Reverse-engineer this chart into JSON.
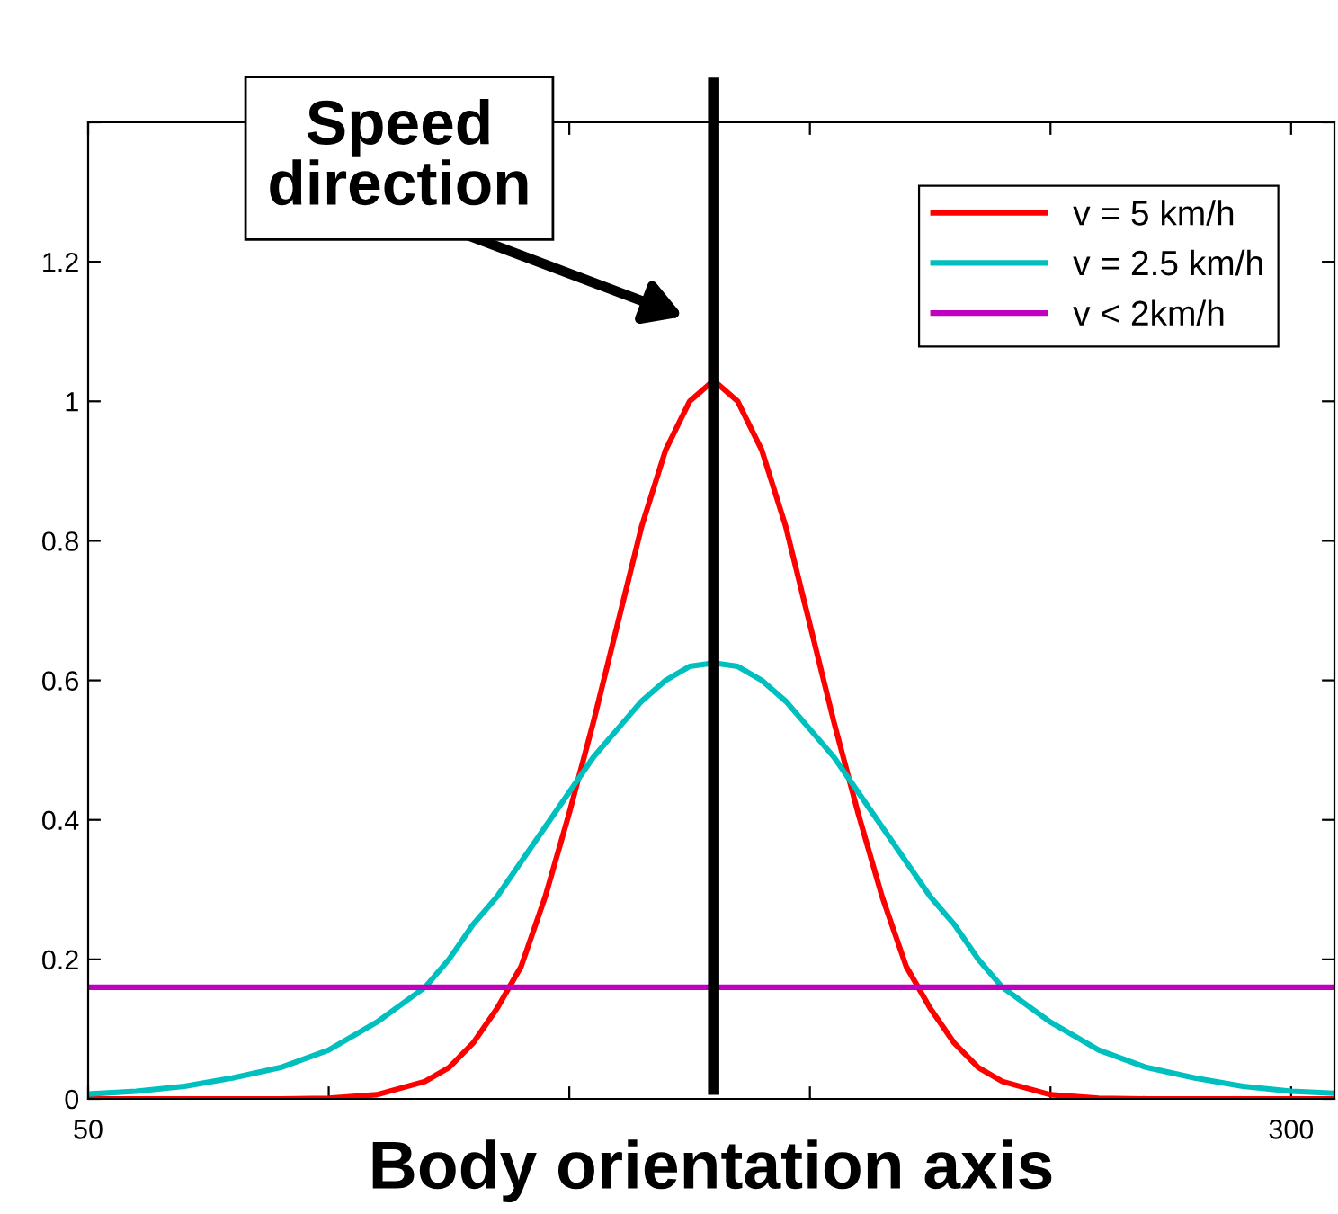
{
  "chart_data": {
    "type": "line",
    "xlabel": "Body orientation axis",
    "x": [
      50,
      60,
      70,
      80,
      90,
      100,
      110,
      120,
      125,
      130,
      135,
      140,
      145,
      150,
      155,
      160,
      165,
      170,
      175,
      180,
      185,
      190,
      195,
      200,
      205,
      210,
      215,
      220,
      225,
      230,
      235,
      240,
      250,
      260,
      270,
      280,
      290,
      300,
      309
    ],
    "series": [
      {
        "name": "v = 5 km/h",
        "color": "#ff0000",
        "values": [
          0,
          0,
          0,
          0,
          0,
          0.001,
          0.006,
          0.025,
          0.045,
          0.08,
          0.13,
          0.19,
          0.29,
          0.41,
          0.54,
          0.68,
          0.82,
          0.93,
          1.0,
          1.03,
          1.0,
          0.93,
          0.82,
          0.68,
          0.54,
          0.41,
          0.29,
          0.19,
          0.13,
          0.08,
          0.045,
          0.025,
          0.006,
          0.001,
          0,
          0,
          0,
          0,
          0
        ]
      },
      {
        "name": "v = 2.5 km/h",
        "color": "#00bfbf",
        "values": [
          0.007,
          0.011,
          0.018,
          0.03,
          0.045,
          0.07,
          0.11,
          0.16,
          0.2,
          0.25,
          0.29,
          0.34,
          0.39,
          0.44,
          0.49,
          0.53,
          0.57,
          0.6,
          0.62,
          0.625,
          0.62,
          0.6,
          0.57,
          0.53,
          0.49,
          0.44,
          0.39,
          0.34,
          0.29,
          0.25,
          0.2,
          0.16,
          0.11,
          0.07,
          0.045,
          0.03,
          0.018,
          0.011,
          0.008
        ]
      },
      {
        "name": "v < 2km/h",
        "color": "#bf00bf",
        "values": [
          0.16,
          0.16,
          0.16,
          0.16,
          0.16,
          0.16,
          0.16,
          0.16,
          0.16,
          0.16,
          0.16,
          0.16,
          0.16,
          0.16,
          0.16,
          0.16,
          0.16,
          0.16,
          0.16,
          0.16,
          0.16,
          0.16,
          0.16,
          0.16,
          0.16,
          0.16,
          0.16,
          0.16,
          0.16,
          0.16,
          0.16,
          0.16,
          0.16,
          0.16,
          0.16,
          0.16,
          0.16,
          0.16,
          0.16
        ]
      }
    ],
    "xlim": [
      50,
      309
    ],
    "xticks": [
      50,
      {
        "value": 100,
        "label": null
      },
      {
        "value": 150,
        "label": null
      },
      {
        "value": 200,
        "label": null
      },
      {
        "value": 250,
        "label": null
      },
      300
    ],
    "ylim": [
      0,
      1.4
    ],
    "yticks": [
      0,
      0.2,
      0.4,
      0.6,
      0.8,
      1,
      1.2,
      {
        "value": 1.4,
        "label": null
      }
    ],
    "ref_lines": [
      {
        "axis": "x",
        "value": 180,
        "color": "#000000"
      }
    ],
    "annotations": [
      "Speed\ndirection"
    ],
    "legend": "top right",
    "grid": false,
    "marker": "none",
    "line_style": "solid"
  }
}
